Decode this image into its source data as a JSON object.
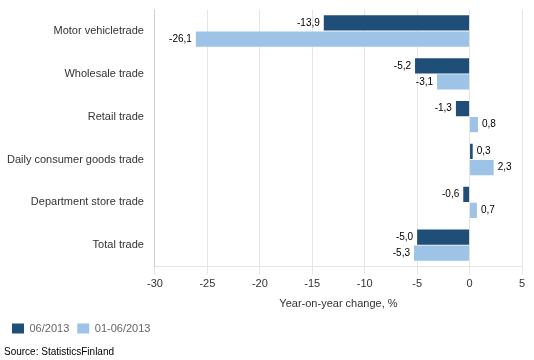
{
  "chart_data": {
    "type": "bar",
    "orientation": "horizontal",
    "categories": [
      "Motor vehicletrade",
      "Wholesale trade",
      "Retail trade",
      "Daily consumer goods trade",
      "Department store trade",
      "Total trade"
    ],
    "series": [
      {
        "name": "06/2013",
        "color": "#1F4E79",
        "values": [
          -13.9,
          -5.2,
          -1.3,
          0.3,
          -0.6,
          -5.0
        ],
        "value_labels": [
          "-13,9",
          "-5,2",
          "-1,3",
          "0,3",
          "-0,6",
          "-5,0"
        ]
      },
      {
        "name": "01-06/2013",
        "color": "#9DC3E6",
        "values": [
          -26.1,
          -3.1,
          0.8,
          2.3,
          0.7,
          -5.3
        ],
        "value_labels": [
          "-26,1",
          "-3,1",
          "0,8",
          "2,3",
          "0,7",
          "-5,3"
        ]
      }
    ],
    "xlabel": "Year-on-year change, %",
    "xlim": [
      -30,
      5
    ],
    "xticks": [
      -30,
      -25,
      -20,
      -15,
      -10,
      -5,
      0,
      5
    ],
    "grid": true,
    "legend": "lower left",
    "data_labels": true,
    "annotations": [
      "Source: StatisticsFinland"
    ]
  }
}
